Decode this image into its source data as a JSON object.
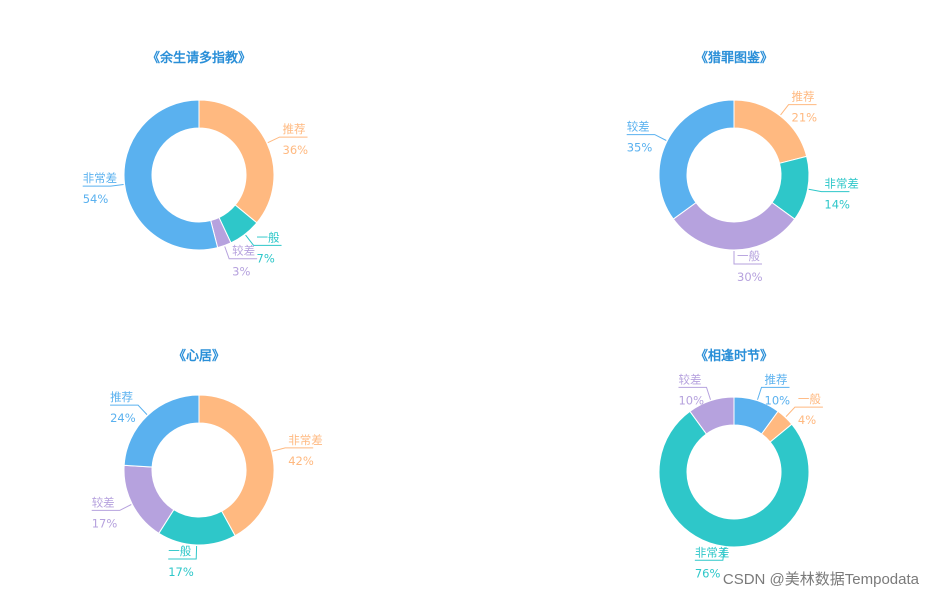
{
  "palette": {
    "orange": "#FFB980",
    "cyan": "#2EC7C9",
    "purple": "#B6A2DE",
    "blue": "#5AB1EF"
  },
  "chart_data": [
    {
      "type": "pie",
      "donut": true,
      "title": "《余生请多指教》",
      "slices": [
        {
          "label": "推荐",
          "value": 36,
          "value_label": "36%",
          "color": "#FFB980"
        },
        {
          "label": "一般",
          "value": 7,
          "value_label": "7%",
          "color": "#2EC7C9"
        },
        {
          "label": "较差",
          "value": 3,
          "value_label": "3%",
          "color": "#B6A2DE"
        },
        {
          "label": "非常差",
          "value": 54,
          "value_label": "54%",
          "color": "#5AB1EF"
        }
      ]
    },
    {
      "type": "pie",
      "donut": true,
      "title": "《猎罪图鉴》",
      "slices": [
        {
          "label": "推荐",
          "value": 21,
          "value_label": "21%",
          "color": "#FFB980"
        },
        {
          "label": "非常差",
          "value": 14,
          "value_label": "14%",
          "color": "#2EC7C9"
        },
        {
          "label": "一般",
          "value": 30,
          "value_label": "30%",
          "color": "#B6A2DE"
        },
        {
          "label": "较差",
          "value": 35,
          "value_label": "35%",
          "color": "#5AB1EF"
        }
      ]
    },
    {
      "type": "pie",
      "donut": true,
      "title": "《心居》",
      "slices": [
        {
          "label": "非常差",
          "value": 42,
          "value_label": "42%",
          "color": "#FFB980"
        },
        {
          "label": "一般",
          "value": 17,
          "value_label": "17%",
          "color": "#2EC7C9"
        },
        {
          "label": "较差",
          "value": 17,
          "value_label": "17%",
          "color": "#B6A2DE"
        },
        {
          "label": "推荐",
          "value": 24,
          "value_label": "24%",
          "color": "#5AB1EF"
        }
      ]
    },
    {
      "type": "pie",
      "donut": true,
      "title": "《相逢时节》",
      "slices": [
        {
          "label": "推荐",
          "value": 10,
          "value_label": "10%",
          "color": "#5AB1EF"
        },
        {
          "label": "一般",
          "value": 4,
          "value_label": "4%",
          "color": "#FFB980"
        },
        {
          "label": "非常差",
          "value": 76,
          "value_label": "76%",
          "color": "#2EC7C9"
        },
        {
          "label": "较差",
          "value": 10,
          "value_label": "10%",
          "color": "#B6A2DE"
        }
      ]
    }
  ],
  "watermark": "CSDN @美林数据Tempodata"
}
